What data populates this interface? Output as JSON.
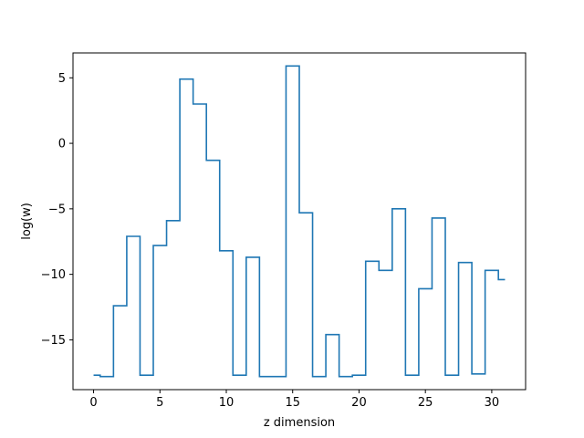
{
  "chart_data": {
    "type": "line",
    "drawstyle": "steps-mid",
    "title": "",
    "xlabel": "z dimension",
    "ylabel": "log(w)",
    "xlim": [
      -1.55,
      32.55
    ],
    "ylim": [
      -18.8,
      6.9
    ],
    "xticks": [
      0,
      5,
      10,
      15,
      20,
      25,
      30
    ],
    "xtick_labels": [
      "0",
      "5",
      "10",
      "15",
      "20",
      "25",
      "30"
    ],
    "yticks": [
      5,
      0,
      -5,
      -10,
      -15
    ],
    "ytick_labels": [
      "5",
      "0",
      "−5",
      "−10",
      "−15"
    ],
    "grid": false,
    "series": [
      {
        "color": "#1f77b4",
        "x": [
          0,
          1,
          2,
          3,
          4,
          5,
          6,
          7,
          8,
          9,
          10,
          11,
          12,
          13,
          14,
          15,
          16,
          17,
          18,
          19,
          20,
          21,
          22,
          23,
          24,
          25,
          26,
          27,
          28,
          29,
          30,
          31
        ],
        "y": [
          -17.7,
          -17.8,
          -12.4,
          -7.1,
          -17.7,
          -7.8,
          -5.9,
          4.9,
          3.0,
          -1.3,
          -8.2,
          -17.7,
          -8.7,
          -17.8,
          -17.8,
          5.9,
          -5.3,
          -17.8,
          -14.6,
          -17.8,
          -17.7,
          -9.0,
          -9.7,
          -5.0,
          -17.7,
          -11.1,
          -5.7,
          -17.7,
          -9.1,
          -17.6,
          -9.7,
          -10.4
        ]
      }
    ]
  }
}
